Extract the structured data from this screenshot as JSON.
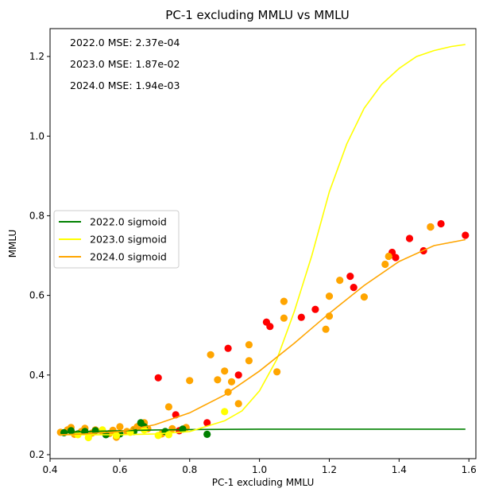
{
  "chart_data": {
    "type": "scatter",
    "title": "PC-1 excluding MMLU vs MMLU",
    "xlabel": "PC-1 excluding MMLU",
    "ylabel": "MMLU",
    "xlim": [
      0.4,
      1.62
    ],
    "ylim": [
      0.19,
      1.27
    ],
    "xticks": [
      0.4,
      0.6,
      0.8,
      1.0,
      1.2,
      1.4,
      1.6
    ],
    "yticks": [
      0.2,
      0.4,
      0.6,
      0.8,
      1.0,
      1.2
    ],
    "xtick_labels": [
      "0.4",
      "0.6",
      "0.8",
      "1.0",
      "1.2",
      "1.4",
      "1.6"
    ],
    "ytick_labels": [
      "0.2",
      "0.4",
      "0.6",
      "0.8",
      "1.0",
      "1.2"
    ],
    "grid": false,
    "legend_position": "center-left",
    "annotations": [
      "2022.0 MSE: 2.37e-04",
      "2023.0 MSE: 1.87e-02",
      "2024.0 MSE: 1.94e-03"
    ],
    "legend": [
      {
        "label": "2022.0 sigmoid",
        "color": "#008000"
      },
      {
        "label": "2023.0 sigmoid",
        "color": "#ffff00"
      },
      {
        "label": "2024.0 sigmoid",
        "color": "#ffa500"
      }
    ],
    "curves": [
      {
        "name": "2022.0 sigmoid",
        "color": "#008000",
        "points": [
          [
            0.43,
            0.255
          ],
          [
            0.5,
            0.258
          ],
          [
            0.6,
            0.26
          ],
          [
            0.7,
            0.262
          ],
          [
            0.8,
            0.263
          ],
          [
            1.0,
            0.264
          ],
          [
            1.2,
            0.264
          ],
          [
            1.4,
            0.264
          ],
          [
            1.59,
            0.264
          ]
        ]
      },
      {
        "name": "2023.0 sigmoid",
        "color": "#ffff00",
        "points": [
          [
            0.43,
            0.25
          ],
          [
            0.6,
            0.25
          ],
          [
            0.7,
            0.252
          ],
          [
            0.8,
            0.258
          ],
          [
            0.9,
            0.285
          ],
          [
            0.95,
            0.31
          ],
          [
            1.0,
            0.36
          ],
          [
            1.05,
            0.44
          ],
          [
            1.1,
            0.56
          ],
          [
            1.15,
            0.7
          ],
          [
            1.2,
            0.86
          ],
          [
            1.25,
            0.98
          ],
          [
            1.3,
            1.07
          ],
          [
            1.35,
            1.13
          ],
          [
            1.4,
            1.17
          ],
          [
            1.45,
            1.2
          ],
          [
            1.5,
            1.215
          ],
          [
            1.55,
            1.225
          ],
          [
            1.59,
            1.23
          ]
        ]
      },
      {
        "name": "2024.0 sigmoid",
        "color": "#ffa500",
        "points": [
          [
            0.43,
            0.25
          ],
          [
            0.5,
            0.252
          ],
          [
            0.6,
            0.258
          ],
          [
            0.7,
            0.275
          ],
          [
            0.8,
            0.305
          ],
          [
            0.9,
            0.35
          ],
          [
            1.0,
            0.41
          ],
          [
            1.1,
            0.48
          ],
          [
            1.2,
            0.555
          ],
          [
            1.3,
            0.625
          ],
          [
            1.4,
            0.685
          ],
          [
            1.5,
            0.725
          ],
          [
            1.59,
            0.74
          ]
        ]
      }
    ],
    "series": [
      {
        "color": "#ff0000",
        "points": [
          [
            0.71,
            0.393
          ],
          [
            0.76,
            0.3
          ],
          [
            0.77,
            0.26
          ],
          [
            0.85,
            0.28
          ],
          [
            0.91,
            0.467
          ],
          [
            0.94,
            0.4
          ],
          [
            1.02,
            0.533
          ],
          [
            1.03,
            0.522
          ],
          [
            1.12,
            0.545
          ],
          [
            1.16,
            0.565
          ],
          [
            1.26,
            0.648
          ],
          [
            1.27,
            0.62
          ],
          [
            1.38,
            0.708
          ],
          [
            1.39,
            0.695
          ],
          [
            1.43,
            0.743
          ],
          [
            1.47,
            0.712
          ],
          [
            1.49,
            0.772
          ],
          [
            1.52,
            0.78
          ],
          [
            1.59,
            0.751
          ]
        ]
      },
      {
        "color": "#ffa500",
        "points": [
          [
            0.43,
            0.256
          ],
          [
            0.45,
            0.262
          ],
          [
            0.46,
            0.268
          ],
          [
            0.47,
            0.251
          ],
          [
            0.49,
            0.258
          ],
          [
            0.5,
            0.266
          ],
          [
            0.52,
            0.254
          ],
          [
            0.53,
            0.262
          ],
          [
            0.55,
            0.258
          ],
          [
            0.57,
            0.253
          ],
          [
            0.58,
            0.261
          ],
          [
            0.59,
            0.244
          ],
          [
            0.6,
            0.27
          ],
          [
            0.62,
            0.258
          ],
          [
            0.64,
            0.263
          ],
          [
            0.65,
            0.27
          ],
          [
            0.66,
            0.272
          ],
          [
            0.67,
            0.28
          ],
          [
            0.68,
            0.265
          ],
          [
            0.72,
            0.252
          ],
          [
            0.74,
            0.32
          ],
          [
            0.75,
            0.265
          ],
          [
            0.79,
            0.268
          ],
          [
            0.8,
            0.386
          ],
          [
            0.86,
            0.451
          ],
          [
            0.88,
            0.388
          ],
          [
            0.9,
            0.41
          ],
          [
            0.91,
            0.357
          ],
          [
            0.92,
            0.383
          ],
          [
            0.94,
            0.328
          ],
          [
            0.97,
            0.476
          ],
          [
            0.97,
            0.436
          ],
          [
            1.05,
            0.408
          ],
          [
            1.07,
            0.543
          ],
          [
            1.07,
            0.585
          ],
          [
            1.19,
            0.515
          ],
          [
            1.2,
            0.598
          ],
          [
            1.2,
            0.548
          ],
          [
            1.23,
            0.638
          ],
          [
            1.3,
            0.596
          ],
          [
            1.36,
            0.678
          ],
          [
            1.37,
            0.698
          ],
          [
            1.49,
            0.772
          ]
        ]
      },
      {
        "color": "#008000",
        "points": [
          [
            0.44,
            0.255
          ],
          [
            0.46,
            0.26
          ],
          [
            0.48,
            0.252
          ],
          [
            0.5,
            0.258
          ],
          [
            0.53,
            0.26
          ],
          [
            0.56,
            0.25
          ],
          [
            0.6,
            0.252
          ],
          [
            0.64,
            0.258
          ],
          [
            0.66,
            0.28
          ],
          [
            0.67,
            0.27
          ],
          [
            0.73,
            0.258
          ],
          [
            0.78,
            0.264
          ],
          [
            0.85,
            0.251
          ]
        ]
      },
      {
        "color": "#ffff00",
        "points": [
          [
            0.48,
            0.25
          ],
          [
            0.51,
            0.243
          ],
          [
            0.55,
            0.262
          ],
          [
            0.59,
            0.248
          ],
          [
            0.63,
            0.256
          ],
          [
            0.67,
            0.262
          ],
          [
            0.71,
            0.248
          ],
          [
            0.74,
            0.25
          ],
          [
            0.9,
            0.308
          ]
        ]
      }
    ]
  }
}
